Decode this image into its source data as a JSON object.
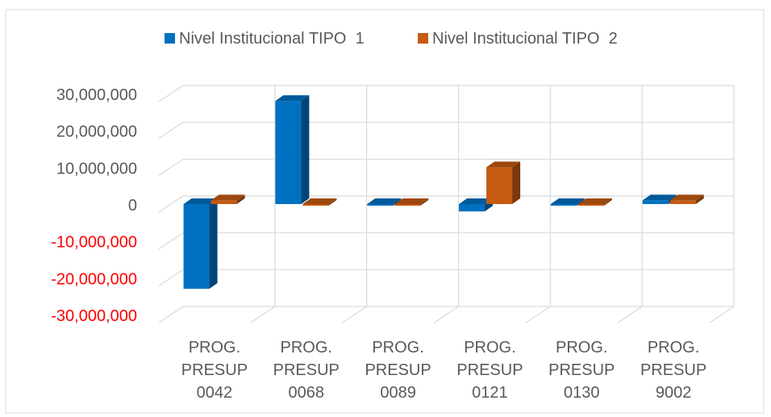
{
  "chart_data": {
    "type": "bar",
    "categories": [
      [
        "PROG.",
        "PRESUP",
        "0042"
      ],
      [
        "PROG.",
        "PRESUP",
        "0068"
      ],
      [
        "PROG.",
        "PRESUP",
        "0089"
      ],
      [
        "PROG.",
        "PRESUP",
        "0121"
      ],
      [
        "PROG.",
        "PRESUP",
        "0130"
      ],
      [
        "PROG.",
        "PRESUP",
        "9002"
      ]
    ],
    "series": [
      {
        "name": "Nivel Institucional TIPO  1",
        "values": [
          -23000000,
          28000000,
          0,
          -2000000,
          0,
          1000000
        ],
        "color": "#0070C0"
      },
      {
        "name": "Nivel Institucional TIPO  2",
        "values": [
          1000000,
          0,
          0,
          10000000,
          0,
          1000000
        ],
        "color": "#C55A11"
      }
    ],
    "y_ticks": [
      {
        "value": 30000000,
        "label": "30,000,000"
      },
      {
        "value": 20000000,
        "label": "20,000,000"
      },
      {
        "value": 10000000,
        "label": "10,000,000"
      },
      {
        "value": 0,
        "label": "0"
      },
      {
        "value": -10000000,
        "label": "-10,000,000"
      },
      {
        "value": -20000000,
        "label": "-20,000,000"
      },
      {
        "value": -30000000,
        "label": "-30,000,000"
      }
    ],
    "ylim": [
      -30000000,
      30000000
    ],
    "negative_label_color": "#FF0000",
    "label_color": "#595959",
    "gridline_color": "#D9D9D9",
    "legend_position": "top",
    "grid": true,
    "style": "3d-clustered-column"
  }
}
